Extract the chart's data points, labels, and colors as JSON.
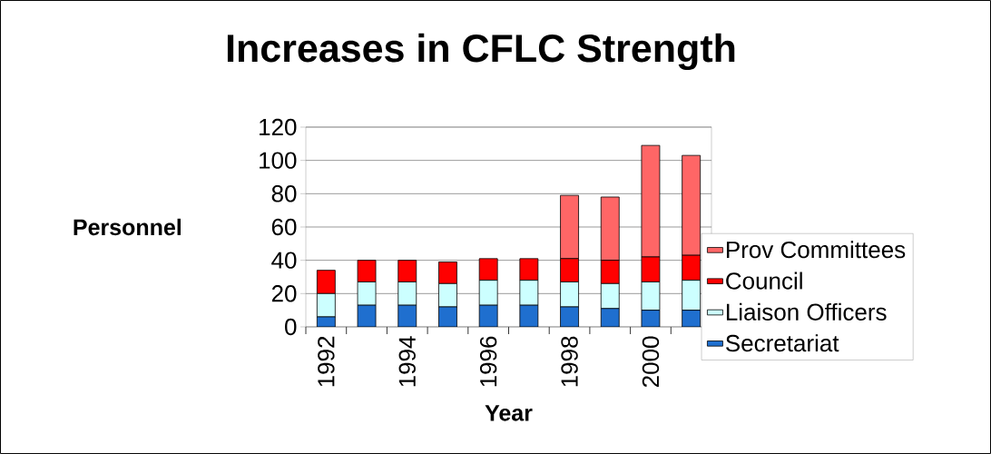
{
  "chart_data": {
    "type": "bar",
    "title": "Increases in CFLC Strength",
    "xlabel": "Year",
    "ylabel": "Personnel",
    "categories": [
      "1992",
      null,
      "1994",
      null,
      "1996",
      null,
      "1998",
      null,
      "2000",
      null
    ],
    "stacked": true,
    "series": [
      {
        "name": "Secretariat",
        "color": "#1f6fcf",
        "values": [
          6,
          13,
          13,
          12,
          13,
          13,
          12,
          11,
          10,
          10
        ]
      },
      {
        "name": "Liaison Officers",
        "color": "#ccffff",
        "values": [
          14,
          14,
          14,
          14,
          15,
          15,
          15,
          15,
          17,
          18
        ]
      },
      {
        "name": "Council",
        "color": "#ff0000",
        "values": [
          14,
          13,
          13,
          13,
          13,
          13,
          14,
          14,
          15,
          15
        ]
      },
      {
        "name": "Prov Committees",
        "color": "#ff6666",
        "values": [
          0,
          0,
          0,
          0,
          0,
          0,
          38,
          38,
          67,
          60
        ]
      }
    ],
    "ylim": [
      0,
      120
    ],
    "yticks": [
      0,
      20,
      40,
      60,
      80,
      100,
      120
    ],
    "grid": "y",
    "legend": "right"
  }
}
